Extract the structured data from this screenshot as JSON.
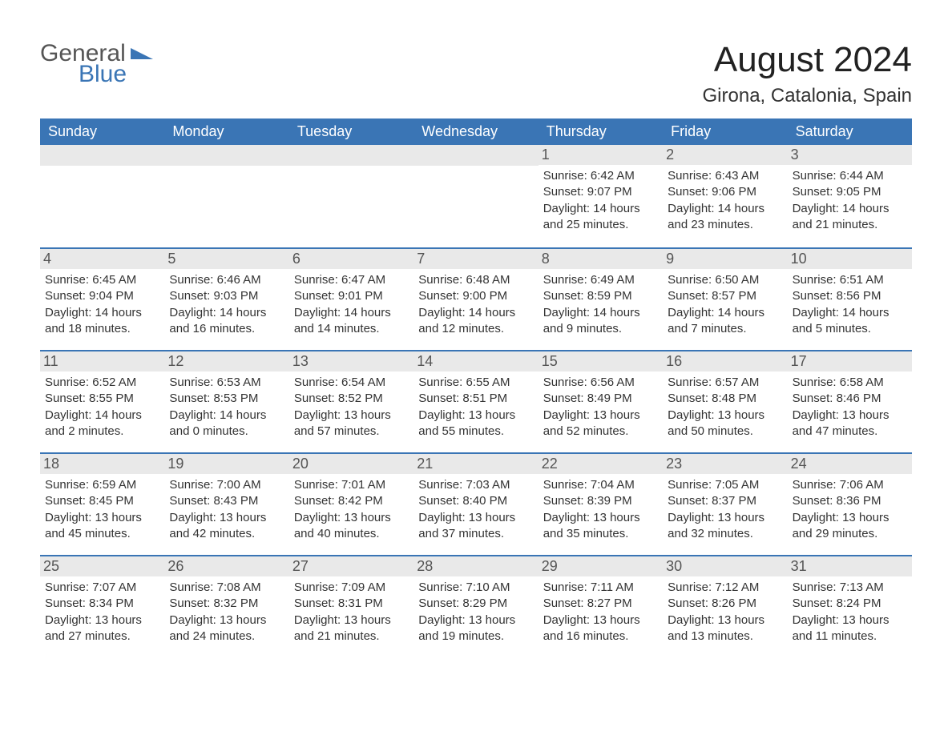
{
  "logo": {
    "general": "General",
    "blue": "Blue",
    "triangle_color": "#3a75b5"
  },
  "header": {
    "month_title": "August 2024",
    "location": "Girona, Catalonia, Spain"
  },
  "colors": {
    "header_bg": "#3a75b5",
    "band_bg": "#e9e9e9",
    "text": "#333333",
    "logo_gray": "#555555",
    "logo_blue": "#3a75b5",
    "background": "#ffffff"
  },
  "weekdays": [
    "Sunday",
    "Monday",
    "Tuesday",
    "Wednesday",
    "Thursday",
    "Friday",
    "Saturday"
  ],
  "weeks": [
    [
      {
        "day": "",
        "sunrise": "",
        "sunset": "",
        "daylight1": "",
        "daylight2": ""
      },
      {
        "day": "",
        "sunrise": "",
        "sunset": "",
        "daylight1": "",
        "daylight2": ""
      },
      {
        "day": "",
        "sunrise": "",
        "sunset": "",
        "daylight1": "",
        "daylight2": ""
      },
      {
        "day": "",
        "sunrise": "",
        "sunset": "",
        "daylight1": "",
        "daylight2": ""
      },
      {
        "day": "1",
        "sunrise": "Sunrise: 6:42 AM",
        "sunset": "Sunset: 9:07 PM",
        "daylight1": "Daylight: 14 hours",
        "daylight2": "and 25 minutes."
      },
      {
        "day": "2",
        "sunrise": "Sunrise: 6:43 AM",
        "sunset": "Sunset: 9:06 PM",
        "daylight1": "Daylight: 14 hours",
        "daylight2": "and 23 minutes."
      },
      {
        "day": "3",
        "sunrise": "Sunrise: 6:44 AM",
        "sunset": "Sunset: 9:05 PM",
        "daylight1": "Daylight: 14 hours",
        "daylight2": "and 21 minutes."
      }
    ],
    [
      {
        "day": "4",
        "sunrise": "Sunrise: 6:45 AM",
        "sunset": "Sunset: 9:04 PM",
        "daylight1": "Daylight: 14 hours",
        "daylight2": "and 18 minutes."
      },
      {
        "day": "5",
        "sunrise": "Sunrise: 6:46 AM",
        "sunset": "Sunset: 9:03 PM",
        "daylight1": "Daylight: 14 hours",
        "daylight2": "and 16 minutes."
      },
      {
        "day": "6",
        "sunrise": "Sunrise: 6:47 AM",
        "sunset": "Sunset: 9:01 PM",
        "daylight1": "Daylight: 14 hours",
        "daylight2": "and 14 minutes."
      },
      {
        "day": "7",
        "sunrise": "Sunrise: 6:48 AM",
        "sunset": "Sunset: 9:00 PM",
        "daylight1": "Daylight: 14 hours",
        "daylight2": "and 12 minutes."
      },
      {
        "day": "8",
        "sunrise": "Sunrise: 6:49 AM",
        "sunset": "Sunset: 8:59 PM",
        "daylight1": "Daylight: 14 hours",
        "daylight2": "and 9 minutes."
      },
      {
        "day": "9",
        "sunrise": "Sunrise: 6:50 AM",
        "sunset": "Sunset: 8:57 PM",
        "daylight1": "Daylight: 14 hours",
        "daylight2": "and 7 minutes."
      },
      {
        "day": "10",
        "sunrise": "Sunrise: 6:51 AM",
        "sunset": "Sunset: 8:56 PM",
        "daylight1": "Daylight: 14 hours",
        "daylight2": "and 5 minutes."
      }
    ],
    [
      {
        "day": "11",
        "sunrise": "Sunrise: 6:52 AM",
        "sunset": "Sunset: 8:55 PM",
        "daylight1": "Daylight: 14 hours",
        "daylight2": "and 2 minutes."
      },
      {
        "day": "12",
        "sunrise": "Sunrise: 6:53 AM",
        "sunset": "Sunset: 8:53 PM",
        "daylight1": "Daylight: 14 hours",
        "daylight2": "and 0 minutes."
      },
      {
        "day": "13",
        "sunrise": "Sunrise: 6:54 AM",
        "sunset": "Sunset: 8:52 PM",
        "daylight1": "Daylight: 13 hours",
        "daylight2": "and 57 minutes."
      },
      {
        "day": "14",
        "sunrise": "Sunrise: 6:55 AM",
        "sunset": "Sunset: 8:51 PM",
        "daylight1": "Daylight: 13 hours",
        "daylight2": "and 55 minutes."
      },
      {
        "day": "15",
        "sunrise": "Sunrise: 6:56 AM",
        "sunset": "Sunset: 8:49 PM",
        "daylight1": "Daylight: 13 hours",
        "daylight2": "and 52 minutes."
      },
      {
        "day": "16",
        "sunrise": "Sunrise: 6:57 AM",
        "sunset": "Sunset: 8:48 PM",
        "daylight1": "Daylight: 13 hours",
        "daylight2": "and 50 minutes."
      },
      {
        "day": "17",
        "sunrise": "Sunrise: 6:58 AM",
        "sunset": "Sunset: 8:46 PM",
        "daylight1": "Daylight: 13 hours",
        "daylight2": "and 47 minutes."
      }
    ],
    [
      {
        "day": "18",
        "sunrise": "Sunrise: 6:59 AM",
        "sunset": "Sunset: 8:45 PM",
        "daylight1": "Daylight: 13 hours",
        "daylight2": "and 45 minutes."
      },
      {
        "day": "19",
        "sunrise": "Sunrise: 7:00 AM",
        "sunset": "Sunset: 8:43 PM",
        "daylight1": "Daylight: 13 hours",
        "daylight2": "and 42 minutes."
      },
      {
        "day": "20",
        "sunrise": "Sunrise: 7:01 AM",
        "sunset": "Sunset: 8:42 PM",
        "daylight1": "Daylight: 13 hours",
        "daylight2": "and 40 minutes."
      },
      {
        "day": "21",
        "sunrise": "Sunrise: 7:03 AM",
        "sunset": "Sunset: 8:40 PM",
        "daylight1": "Daylight: 13 hours",
        "daylight2": "and 37 minutes."
      },
      {
        "day": "22",
        "sunrise": "Sunrise: 7:04 AM",
        "sunset": "Sunset: 8:39 PM",
        "daylight1": "Daylight: 13 hours",
        "daylight2": "and 35 minutes."
      },
      {
        "day": "23",
        "sunrise": "Sunrise: 7:05 AM",
        "sunset": "Sunset: 8:37 PM",
        "daylight1": "Daylight: 13 hours",
        "daylight2": "and 32 minutes."
      },
      {
        "day": "24",
        "sunrise": "Sunrise: 7:06 AM",
        "sunset": "Sunset: 8:36 PM",
        "daylight1": "Daylight: 13 hours",
        "daylight2": "and 29 minutes."
      }
    ],
    [
      {
        "day": "25",
        "sunrise": "Sunrise: 7:07 AM",
        "sunset": "Sunset: 8:34 PM",
        "daylight1": "Daylight: 13 hours",
        "daylight2": "and 27 minutes."
      },
      {
        "day": "26",
        "sunrise": "Sunrise: 7:08 AM",
        "sunset": "Sunset: 8:32 PM",
        "daylight1": "Daylight: 13 hours",
        "daylight2": "and 24 minutes."
      },
      {
        "day": "27",
        "sunrise": "Sunrise: 7:09 AM",
        "sunset": "Sunset: 8:31 PM",
        "daylight1": "Daylight: 13 hours",
        "daylight2": "and 21 minutes."
      },
      {
        "day": "28",
        "sunrise": "Sunrise: 7:10 AM",
        "sunset": "Sunset: 8:29 PM",
        "daylight1": "Daylight: 13 hours",
        "daylight2": "and 19 minutes."
      },
      {
        "day": "29",
        "sunrise": "Sunrise: 7:11 AM",
        "sunset": "Sunset: 8:27 PM",
        "daylight1": "Daylight: 13 hours",
        "daylight2": "and 16 minutes."
      },
      {
        "day": "30",
        "sunrise": "Sunrise: 7:12 AM",
        "sunset": "Sunset: 8:26 PM",
        "daylight1": "Daylight: 13 hours",
        "daylight2": "and 13 minutes."
      },
      {
        "day": "31",
        "sunrise": "Sunrise: 7:13 AM",
        "sunset": "Sunset: 8:24 PM",
        "daylight1": "Daylight: 13 hours",
        "daylight2": "and 11 minutes."
      }
    ]
  ]
}
